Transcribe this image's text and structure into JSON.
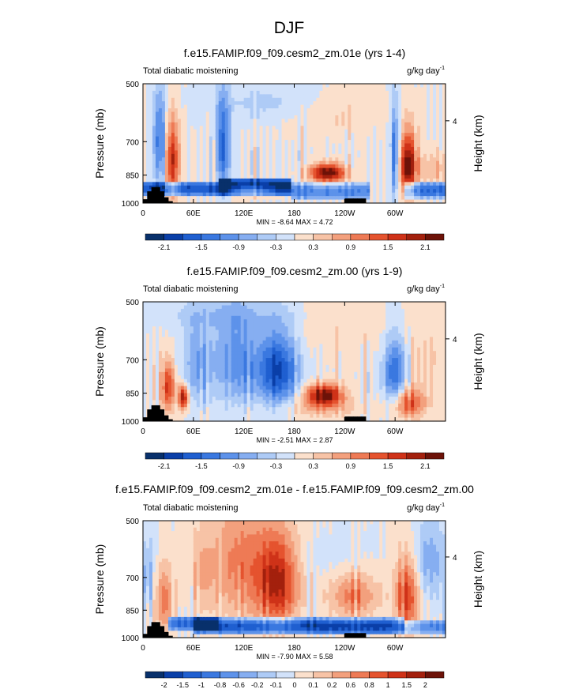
{
  "figure": {
    "title": "DJF"
  },
  "chart_data": [
    {
      "type": "heatmap",
      "title": "f.e15.FAMIP.f09_f09.cesm2_zm.01e (yrs 1-4)",
      "left_label": "Total diabatic moistening",
      "units_label": "g/kg day",
      "units_exp": "-1",
      "ylabel": "Pressure (mb)",
      "right_label": "Height (km)",
      "right_ticks": [
        "4"
      ],
      "yticks": [
        "500",
        "700",
        "850",
        "1000"
      ],
      "xticks": [
        "0",
        "60E",
        "120E",
        "180",
        "120W",
        "60W"
      ],
      "xlim": [
        0,
        360
      ],
      "ylim": [
        1000,
        500
      ],
      "min_text": "MIN = -8.64  MAX =  4.72",
      "colorbar": {
        "labels": [
          "-2.1",
          "-1.5",
          "-0.9",
          "-0.3",
          "0.3",
          "0.9",
          "1.5",
          "2.1"
        ],
        "colors": [
          "#08306b",
          "#0a3fa8",
          "#1f5fd0",
          "#3a78e0",
          "#5d92ea",
          "#86aef1",
          "#aecbf6",
          "#d2e2fa",
          "#fbe0cc",
          "#f7c3a6",
          "#f3a07d",
          "#ee7a55",
          "#e5532e",
          "#cf3218",
          "#a3200d",
          "#6d1208"
        ]
      },
      "features": [
        {
          "kind": "band",
          "lon": [
            90,
            175
          ],
          "p": [
            860,
            960
          ],
          "v": -2.4
        },
        {
          "kind": "band",
          "lon": [
            0,
            90
          ],
          "p": [
            880,
            960
          ],
          "v": -1.8
        },
        {
          "kind": "band",
          "lon": [
            175,
            270
          ],
          "p": [
            890,
            980
          ],
          "v": -1.2
        },
        {
          "kind": "band",
          "lon": [
            310,
            360
          ],
          "p": [
            880,
            970
          ],
          "v": -1.6
        },
        {
          "kind": "blob",
          "lon": 220,
          "p": 840,
          "dlon": 22,
          "dp": 45,
          "v": 2.4
        },
        {
          "kind": "blob",
          "lon": 35,
          "p": 780,
          "dlon": 8,
          "dp": 180,
          "v": 1.8
        },
        {
          "kind": "blob",
          "lon": 315,
          "p": 800,
          "dlon": 10,
          "dp": 150,
          "v": 2.2
        },
        {
          "kind": "blob",
          "lon": 130,
          "p": 930,
          "dlon": 25,
          "dp": 30,
          "v": 1.2
        },
        {
          "kind": "blob",
          "lon": 350,
          "p": 820,
          "dlon": 35,
          "dp": 80,
          "v": 0.5
        },
        {
          "kind": "blob",
          "lon": 20,
          "p": 700,
          "dlon": 8,
          "dp": 200,
          "v": -1.4
        },
        {
          "kind": "blob",
          "lon": 95,
          "p": 720,
          "dlon": 8,
          "dp": 200,
          "v": -1.6
        },
        {
          "kind": "blob",
          "lon": 300,
          "p": 750,
          "dlon": 6,
          "dp": 200,
          "v": -1.5
        },
        {
          "kind": "blob",
          "lon": 230,
          "p": 600,
          "dlon": 60,
          "dp": 80,
          "v": 0.35
        },
        {
          "kind": "blob",
          "lon": 150,
          "p": 560,
          "dlon": 70,
          "dp": 60,
          "v": -0.4
        }
      ],
      "topography": [
        [
          10,
          30,
          40,
          40,
          30,
          15,
          5,
          0,
          0,
          0,
          0,
          0,
          0,
          0,
          0,
          0,
          0,
          0,
          0,
          0,
          0,
          0,
          0,
          0,
          0,
          0,
          0,
          0,
          0,
          0,
          0,
          0,
          0,
          0,
          0,
          0,
          0,
          0,
          0,
          0,
          0,
          0,
          0,
          0,
          0,
          0,
          0,
          0,
          12,
          12,
          12,
          12,
          12,
          0,
          0,
          0,
          0,
          0,
          0,
          0,
          0,
          0,
          0,
          0,
          0,
          0,
          0,
          0,
          0,
          0,
          0,
          0,
          0
        ]
      ]
    },
    {
      "type": "heatmap",
      "title": "f.e15.FAMIP.f09_f09.cesm2_zm.00 (yrs 1-9)",
      "left_label": "Total diabatic moistening",
      "units_label": "g/kg day",
      "units_exp": "-1",
      "ylabel": "Pressure (mb)",
      "right_label": "Height (km)",
      "right_ticks": [
        "4"
      ],
      "yticks": [
        "500",
        "700",
        "850",
        "1000"
      ],
      "xticks": [
        "0",
        "60E",
        "120E",
        "180",
        "120W",
        "60W"
      ],
      "xlim": [
        0,
        360
      ],
      "ylim": [
        1000,
        500
      ],
      "min_text": "MIN = -2.51  MAX =  2.87",
      "colorbar": {
        "labels": [
          "-2.1",
          "-1.5",
          "-0.9",
          "-0.3",
          "0.3",
          "0.9",
          "1.5",
          "2.1"
        ],
        "colors": [
          "#08306b",
          "#0a3fa8",
          "#1f5fd0",
          "#3a78e0",
          "#5d92ea",
          "#86aef1",
          "#aecbf6",
          "#d2e2fa",
          "#fbe0cc",
          "#f7c3a6",
          "#f3a07d",
          "#ee7a55",
          "#e5532e",
          "#cf3218",
          "#a3200d",
          "#6d1208"
        ]
      },
      "features": [
        {
          "kind": "blob",
          "lon": 160,
          "p": 740,
          "dlon": 25,
          "dp": 170,
          "v": -1.9
        },
        {
          "kind": "blob",
          "lon": 110,
          "p": 700,
          "dlon": 25,
          "dp": 200,
          "v": -1.1
        },
        {
          "kind": "blob",
          "lon": 65,
          "p": 720,
          "dlon": 18,
          "dp": 180,
          "v": -0.9
        },
        {
          "kind": "blob",
          "lon": 300,
          "p": 760,
          "dlon": 14,
          "dp": 160,
          "v": -1.6
        },
        {
          "kind": "blob",
          "lon": 30,
          "p": 820,
          "dlon": 8,
          "dp": 120,
          "v": 1.6
        },
        {
          "kind": "blob",
          "lon": 48,
          "p": 870,
          "dlon": 6,
          "dp": 60,
          "v": 2.2
        },
        {
          "kind": "blob",
          "lon": 215,
          "p": 860,
          "dlon": 22,
          "dp": 55,
          "v": 2.3
        },
        {
          "kind": "blob",
          "lon": 315,
          "p": 900,
          "dlon": 20,
          "dp": 80,
          "v": 1.4
        },
        {
          "kind": "blob",
          "lon": 205,
          "p": 930,
          "dlon": 60,
          "dp": 60,
          "v": 0.5
        },
        {
          "kind": "blob",
          "lon": 340,
          "p": 700,
          "dlon": 35,
          "dp": 200,
          "v": 0.3
        },
        {
          "kind": "blob",
          "lon": 220,
          "p": 580,
          "dlon": 80,
          "dp": 120,
          "v": 0.25
        },
        {
          "kind": "blob",
          "lon": 100,
          "p": 540,
          "dlon": 90,
          "dp": 50,
          "v": -0.35
        }
      ],
      "topography": [
        [
          10,
          30,
          40,
          40,
          30,
          15,
          5,
          0,
          0,
          0,
          0,
          0,
          0,
          0,
          0,
          0,
          0,
          0,
          0,
          0,
          0,
          0,
          0,
          0,
          0,
          0,
          0,
          0,
          0,
          0,
          0,
          0,
          0,
          0,
          0,
          0,
          0,
          0,
          0,
          0,
          0,
          0,
          0,
          0,
          0,
          0,
          0,
          0,
          12,
          12,
          12,
          12,
          12,
          0,
          0,
          0,
          0,
          0,
          0,
          0,
          0,
          0,
          0,
          0,
          0,
          0,
          0,
          0,
          0,
          0,
          0,
          0,
          0
        ]
      ]
    },
    {
      "type": "heatmap",
      "title": "f.e15.FAMIP.f09_f09.cesm2_zm.01e - f.e15.FAMIP.f09_f09.cesm2_zm.00",
      "left_label": "Total diabatic moistening",
      "units_label": "g/kg day",
      "units_exp": "-1",
      "ylabel": "Pressure (mb)",
      "right_label": "Height (km)",
      "right_ticks": [
        "4"
      ],
      "yticks": [
        "500",
        "700",
        "850",
        "1000"
      ],
      "xticks": [
        "0",
        "60E",
        "120E",
        "180",
        "120W",
        "60W"
      ],
      "xlim": [
        0,
        360
      ],
      "ylim": [
        1000,
        500
      ],
      "min_text": "MIN = -7.90  MAX =  5.58",
      "colorbar": {
        "labels": [
          "-2",
          "-1.5",
          "-1",
          "-0.8",
          "-0.6",
          "-0.2",
          "-0.1",
          "0",
          "0.1",
          "0.2",
          "0.6",
          "0.8",
          "1",
          "1.5",
          "2"
        ],
        "colors": [
          "#08306b",
          "#0a3fa8",
          "#1f5fd0",
          "#3a78e0",
          "#5d92ea",
          "#86aef1",
          "#aecbf6",
          "#d2e2fa",
          "#fbe0cc",
          "#f7c3a6",
          "#f3a07d",
          "#ee7a55",
          "#e5532e",
          "#cf3218",
          "#a3200d",
          "#6d1208"
        ]
      },
      "features": [
        {
          "kind": "band",
          "lon": 60,
          "p": [
            880,
            960
          ],
          "v": -1.6
        },
        {
          "kind": "band",
          "lon": [
            60,
            310
          ],
          "p": [
            890,
            980
          ],
          "v": -2.0
        },
        {
          "kind": "band",
          "lon": [
            310,
            360
          ],
          "p": [
            900,
            980
          ],
          "v": -1.2
        },
        {
          "kind": "blob",
          "lon": 160,
          "p": 720,
          "dlon": 25,
          "dp": 200,
          "v": 1.8
        },
        {
          "kind": "blob",
          "lon": 115,
          "p": 640,
          "dlon": 35,
          "dp": 250,
          "v": 1.0
        },
        {
          "kind": "blob",
          "lon": 250,
          "p": 780,
          "dlon": 30,
          "dp": 110,
          "v": 1.0
        },
        {
          "kind": "blob",
          "lon": 315,
          "p": 780,
          "dlon": 15,
          "dp": 180,
          "v": 1.5
        },
        {
          "kind": "blob",
          "lon": 25,
          "p": 800,
          "dlon": 10,
          "dp": 160,
          "v": 1.1
        },
        {
          "kind": "blob",
          "lon": 5,
          "p": 700,
          "dlon": 10,
          "dp": 150,
          "v": -0.7
        },
        {
          "kind": "blob",
          "lon": 70,
          "p": 680,
          "dlon": 15,
          "dp": 180,
          "v": 0.5
        },
        {
          "kind": "blob",
          "lon": 340,
          "p": 640,
          "dlon": 20,
          "dp": 160,
          "v": -0.8
        },
        {
          "kind": "blob",
          "lon": 230,
          "p": 640,
          "dlon": 50,
          "dp": 80,
          "v": -0.15
        }
      ],
      "topography": [
        [
          10,
          30,
          40,
          40,
          30,
          15,
          5,
          0,
          0,
          0,
          0,
          0,
          0,
          0,
          0,
          0,
          0,
          0,
          0,
          0,
          0,
          0,
          0,
          0,
          0,
          0,
          0,
          0,
          0,
          0,
          0,
          0,
          0,
          0,
          0,
          0,
          0,
          0,
          0,
          0,
          0,
          0,
          0,
          0,
          0,
          0,
          0,
          0,
          12,
          12,
          12,
          12,
          12,
          0,
          0,
          0,
          0,
          0,
          0,
          0,
          0,
          0,
          0,
          0,
          0,
          0,
          0,
          0,
          0,
          0,
          0,
          0,
          0
        ]
      ]
    }
  ]
}
